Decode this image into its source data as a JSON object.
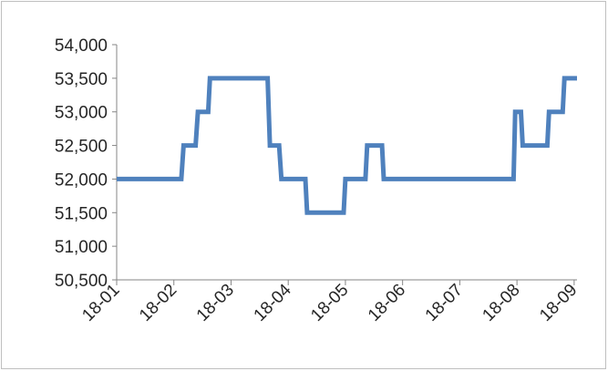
{
  "chart_data": {
    "type": "line",
    "title": "",
    "xlabel": "",
    "ylabel": "",
    "ylim": [
      50500,
      54000
    ],
    "yticks": [
      50500,
      51000,
      51500,
      52000,
      52500,
      53000,
      53500,
      54000
    ],
    "ytick_labels": [
      "50,500",
      "51,000",
      "51,500",
      "52,000",
      "52,500",
      "53,000",
      "53,500",
      "54,000"
    ],
    "xlim": [
      1,
      9.05
    ],
    "xticks": [
      1,
      2,
      3,
      4,
      5,
      6,
      7,
      8,
      9
    ],
    "xtick_labels": [
      "18-01",
      "18-02",
      "18-03",
      "18-04",
      "18-05",
      "18-06",
      "18-07",
      "18-08",
      "18-09"
    ],
    "grid": false,
    "legend": "none",
    "series": [
      {
        "color": "#4f81bd",
        "x": [
          1,
          2.13,
          2.17,
          2.38,
          2.42,
          2.6,
          2.63,
          3.64,
          3.68,
          3.84,
          3.88,
          4.3,
          4.33,
          4.97,
          5.0,
          5.35,
          5.38,
          5.64,
          5.67,
          7.94,
          7.97,
          8.07,
          8.1,
          8.53,
          8.56,
          8.8,
          8.83,
          9.05
        ],
        "y": [
          52000,
          52000,
          52500,
          52500,
          53000,
          53000,
          53500,
          53500,
          52500,
          52500,
          52000,
          52000,
          51500,
          51500,
          52000,
          52000,
          52500,
          52500,
          52000,
          52000,
          53000,
          53000,
          52500,
          52500,
          53000,
          53000,
          53500,
          53500
        ]
      }
    ]
  }
}
